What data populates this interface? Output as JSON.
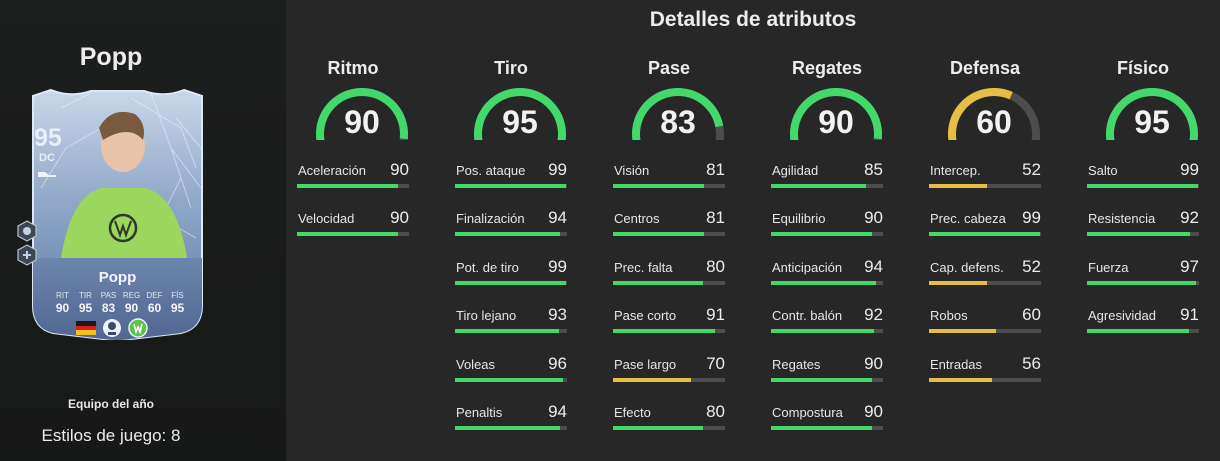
{
  "player": {
    "name": "Popp",
    "team_label": "Equipo del año",
    "playstyles_label": "Estilos de juego: 8"
  },
  "card": {
    "rating": "95",
    "position": "DC",
    "name": "Popp",
    "stats": [
      {
        "label": "RIT",
        "value": "90"
      },
      {
        "label": "TIR",
        "value": "95"
      },
      {
        "label": "PAS",
        "value": "83"
      },
      {
        "label": "REG",
        "value": "90"
      },
      {
        "label": "DEF",
        "value": "60"
      },
      {
        "label": "FÍS",
        "value": "95"
      }
    ]
  },
  "main": {
    "title": "Detalles de atributos"
  },
  "colors": {
    "green": "#43d86a",
    "yellow": "#e6bd45",
    "track": "#4c4d4c"
  },
  "categories": [
    {
      "name": "Ritmo",
      "value": 90,
      "color": "green",
      "stats": [
        {
          "label": "Aceleración",
          "value": 90
        },
        {
          "label": "Velocidad",
          "value": 90
        }
      ]
    },
    {
      "name": "Tiro",
      "value": 95,
      "color": "green",
      "stats": [
        {
          "label": "Pos. ataque",
          "value": 99
        },
        {
          "label": "Finalización",
          "value": 94
        },
        {
          "label": "Pot. de tiro",
          "value": 99
        },
        {
          "label": "Tiro lejano",
          "value": 93
        },
        {
          "label": "Voleas",
          "value": 96
        },
        {
          "label": "Penaltis",
          "value": 94
        }
      ]
    },
    {
      "name": "Pase",
      "value": 83,
      "color": "green",
      "stats": [
        {
          "label": "Visión",
          "value": 81
        },
        {
          "label": "Centros",
          "value": 81
        },
        {
          "label": "Prec. falta",
          "value": 80
        },
        {
          "label": "Pase corto",
          "value": 91
        },
        {
          "label": "Pase largo",
          "value": 70
        },
        {
          "label": "Efecto",
          "value": 80
        }
      ]
    },
    {
      "name": "Regates",
      "value": 90,
      "color": "green",
      "stats": [
        {
          "label": "Agilidad",
          "value": 85
        },
        {
          "label": "Equilibrio",
          "value": 90
        },
        {
          "label": "Anticipación",
          "value": 94
        },
        {
          "label": "Contr. balón",
          "value": 92
        },
        {
          "label": "Regates",
          "value": 90
        },
        {
          "label": "Compostura",
          "value": 90
        }
      ]
    },
    {
      "name": "Defensa",
      "value": 60,
      "color": "yellow",
      "stats": [
        {
          "label": "Intercep.",
          "value": 52
        },
        {
          "label": "Prec. cabeza",
          "value": 99
        },
        {
          "label": "Cap. defens.",
          "value": 52
        },
        {
          "label": "Robos",
          "value": 60
        },
        {
          "label": "Entradas",
          "value": 56
        }
      ]
    },
    {
      "name": "Físico",
      "value": 95,
      "color": "green",
      "stats": [
        {
          "label": "Salto",
          "value": 99
        },
        {
          "label": "Resistencia",
          "value": 92
        },
        {
          "label": "Fuerza",
          "value": 97
        },
        {
          "label": "Agresividad",
          "value": 91
        }
      ]
    }
  ]
}
